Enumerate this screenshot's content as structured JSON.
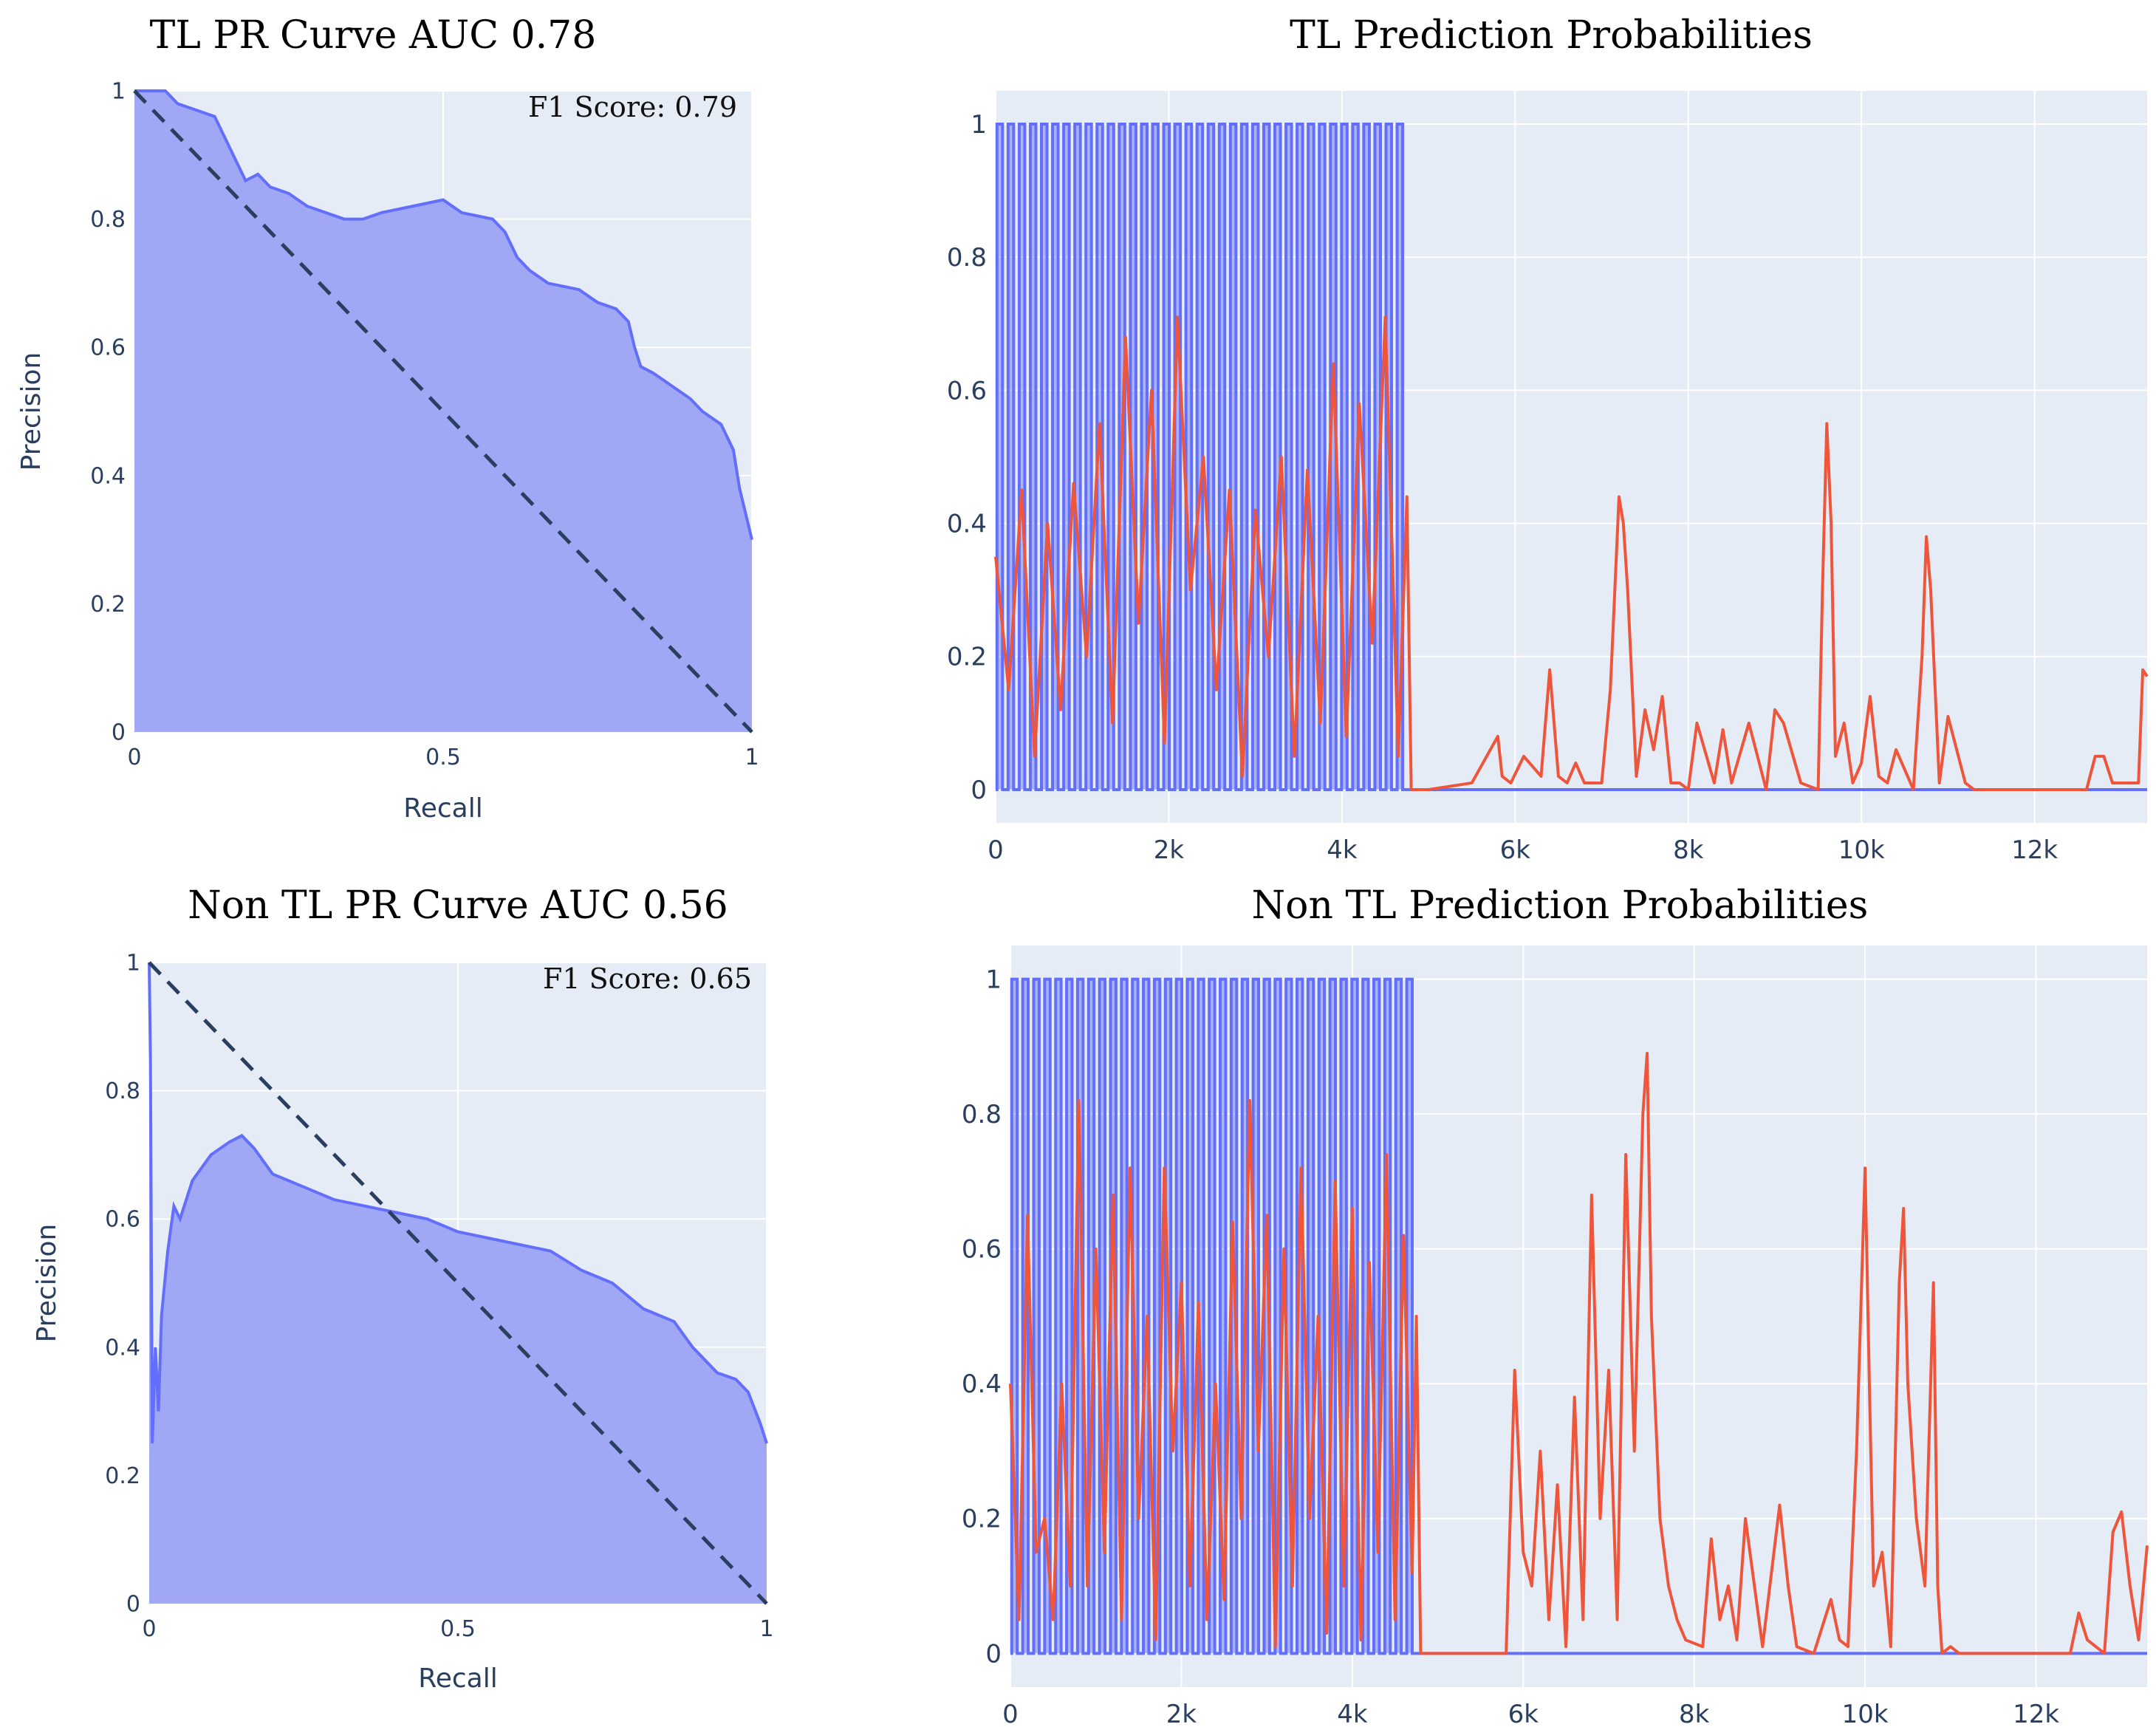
{
  "colors": {
    "plot_bg": "#e5ecf6",
    "grid": "#ffffff",
    "blue_line": "#636efa",
    "blue_fill": "#a0a8f5",
    "red_line": "#ef553b",
    "diag": "#2a3f5f",
    "tick_text": "#2a3f5f"
  },
  "chart_data": [
    {
      "type": "area",
      "id": "tl_pr",
      "title": "TL PR Curve AUC 0.78",
      "xlabel": "Recall",
      "ylabel": "Precision",
      "xlim": [
        0,
        1
      ],
      "ylim": [
        0,
        1
      ],
      "xticks": [
        0,
        0.5,
        1
      ],
      "xticklabels": [
        "0",
        "0.5",
        "1"
      ],
      "yticks": [
        0,
        0.2,
        0.4,
        0.6,
        0.8,
        1
      ],
      "yticklabels": [
        "0",
        "0.2",
        "0.4",
        "0.6",
        "0.8",
        "1"
      ],
      "annotation": "F1 Score: 0.79",
      "diagonal": [
        [
          0,
          1
        ],
        [
          1,
          0
        ]
      ],
      "series": [
        {
          "name": "PR curve",
          "x": [
            0,
            0.05,
            0.07,
            0.13,
            0.15,
            0.17,
            0.18,
            0.2,
            0.22,
            0.25,
            0.28,
            0.31,
            0.34,
            0.37,
            0.4,
            0.45,
            0.5,
            0.53,
            0.58,
            0.6,
            0.62,
            0.64,
            0.67,
            0.72,
            0.75,
            0.78,
            0.8,
            0.81,
            0.82,
            0.84,
            0.87,
            0.9,
            0.92,
            0.95,
            0.97,
            0.98,
            0.99,
            1
          ],
          "y": [
            1,
            1,
            0.98,
            0.96,
            0.92,
            0.88,
            0.86,
            0.87,
            0.85,
            0.84,
            0.82,
            0.81,
            0.8,
            0.8,
            0.81,
            0.82,
            0.83,
            0.81,
            0.8,
            0.78,
            0.74,
            0.72,
            0.7,
            0.69,
            0.67,
            0.66,
            0.64,
            0.6,
            0.57,
            0.56,
            0.54,
            0.52,
            0.5,
            0.48,
            0.44,
            0.38,
            0.34,
            0.3
          ]
        }
      ]
    },
    {
      "type": "line",
      "id": "tl_prob",
      "title": "TL Prediction Probabilities",
      "xlim": [
        0,
        13300
      ],
      "ylim": [
        -0.05,
        1.05
      ],
      "xticks": [
        0,
        2000,
        4000,
        6000,
        8000,
        10000,
        12000
      ],
      "xticklabels": [
        "0",
        "2k",
        "4k",
        "6k",
        "8k",
        "10k",
        "12k"
      ],
      "yticks": [
        0,
        0.2,
        0.4,
        0.6,
        0.8,
        1
      ],
      "yticklabels": [
        "0",
        "0.2",
        "0.4",
        "0.6",
        "0.8",
        "1"
      ],
      "label_end": 4750,
      "label_segments": 37,
      "series": [
        {
          "name": "Prediction probability",
          "x": [
            0,
            150,
            300,
            450,
            600,
            750,
            900,
            1050,
            1200,
            1350,
            1500,
            1650,
            1800,
            1950,
            2100,
            2250,
            2400,
            2550,
            2700,
            2850,
            3000,
            3150,
            3300,
            3450,
            3600,
            3750,
            3900,
            4050,
            4200,
            4350,
            4500,
            4650,
            4750,
            4800,
            5000,
            5500,
            5800,
            5850,
            5950,
            6100,
            6300,
            6400,
            6500,
            6600,
            6700,
            6800,
            7000,
            7100,
            7200,
            7250,
            7300,
            7400,
            7500,
            7600,
            7700,
            7800,
            7900,
            8000,
            8100,
            8300,
            8400,
            8500,
            8700,
            8900,
            9000,
            9100,
            9300,
            9500,
            9550,
            9600,
            9650,
            9700,
            9800,
            9900,
            10000,
            10100,
            10200,
            10300,
            10400,
            10600,
            10700,
            10750,
            10800,
            10900,
            11000,
            11100,
            11200,
            11300,
            11500,
            12000,
            12600,
            12700,
            12800,
            12900,
            13200,
            13250,
            13300
          ],
          "y": [
            0.35,
            0.15,
            0.45,
            0.05,
            0.4,
            0.12,
            0.46,
            0.2,
            0.55,
            0.1,
            0.68,
            0.25,
            0.6,
            0.07,
            0.71,
            0.3,
            0.5,
            0.15,
            0.45,
            0.02,
            0.42,
            0.2,
            0.5,
            0.05,
            0.48,
            0.1,
            0.64,
            0.08,
            0.58,
            0.22,
            0.71,
            0.05,
            0.44,
            0.0,
            0.0,
            0.01,
            0.08,
            0.02,
            0.01,
            0.05,
            0.02,
            0.18,
            0.02,
            0.01,
            0.04,
            0.01,
            0.01,
            0.15,
            0.44,
            0.4,
            0.3,
            0.02,
            0.12,
            0.06,
            0.14,
            0.01,
            0.01,
            0.0,
            0.1,
            0.01,
            0.09,
            0.01,
            0.1,
            0.0,
            0.12,
            0.1,
            0.01,
            0.0,
            0.3,
            0.55,
            0.4,
            0.05,
            0.1,
            0.01,
            0.04,
            0.14,
            0.02,
            0.01,
            0.06,
            0.0,
            0.2,
            0.38,
            0.3,
            0.01,
            0.11,
            0.06,
            0.01,
            0.0,
            0.0,
            0.0,
            0.0,
            0.05,
            0.05,
            0.01,
            0.01,
            0.18,
            0.17
          ]
        }
      ]
    },
    {
      "type": "area",
      "id": "nontl_pr",
      "title": "Non TL PR Curve AUC 0.56",
      "xlabel": "Recall",
      "ylabel": "Precision",
      "xlim": [
        0,
        1
      ],
      "ylim": [
        0,
        1
      ],
      "xticks": [
        0,
        0.5,
        1
      ],
      "xticklabels": [
        "0",
        "0.5",
        "1"
      ],
      "yticks": [
        0,
        0.2,
        0.4,
        0.6,
        0.8,
        1
      ],
      "yticklabels": [
        "0",
        "0.2",
        "0.4",
        "0.6",
        "0.8",
        "1"
      ],
      "annotation": "F1 Score: 0.65",
      "diagonal": [
        [
          0,
          1
        ],
        [
          1,
          0
        ]
      ],
      "series": [
        {
          "name": "PR curve",
          "x": [
            0,
            0.002,
            0.005,
            0.01,
            0.015,
            0.02,
            0.03,
            0.04,
            0.05,
            0.07,
            0.1,
            0.13,
            0.15,
            0.17,
            0.2,
            0.25,
            0.3,
            0.35,
            0.4,
            0.45,
            0.5,
            0.55,
            0.6,
            0.65,
            0.7,
            0.75,
            0.8,
            0.85,
            0.88,
            0.9,
            0.92,
            0.95,
            0.97,
            0.99,
            1
          ],
          "y": [
            1,
            0.85,
            0.25,
            0.4,
            0.3,
            0.45,
            0.55,
            0.62,
            0.6,
            0.66,
            0.7,
            0.72,
            0.73,
            0.71,
            0.67,
            0.65,
            0.63,
            0.62,
            0.61,
            0.6,
            0.58,
            0.57,
            0.56,
            0.55,
            0.52,
            0.5,
            0.46,
            0.44,
            0.4,
            0.38,
            0.36,
            0.35,
            0.33,
            0.28,
            0.25
          ]
        }
      ]
    },
    {
      "type": "line",
      "id": "nontl_prob",
      "title": "Non TL Prediction Probabilities",
      "xlim": [
        0,
        13300
      ],
      "ylim": [
        -0.05,
        1.05
      ],
      "xticks": [
        0,
        2000,
        4000,
        6000,
        8000,
        10000,
        12000
      ],
      "xticklabels": [
        "0",
        "2k",
        "4k",
        "6k",
        "8k",
        "10k",
        "12k"
      ],
      "yticks": [
        0,
        0.2,
        0.4,
        0.6,
        0.8,
        1
      ],
      "yticklabels": [
        "0",
        "0.2",
        "0.4",
        "0.6",
        "0.8",
        "1"
      ],
      "label_end": 4750,
      "label_segments": 37,
      "series": [
        {
          "name": "Prediction probability",
          "x": [
            0,
            100,
            200,
            300,
            400,
            500,
            600,
            700,
            800,
            900,
            1000,
            1100,
            1200,
            1300,
            1400,
            1500,
            1600,
            1700,
            1800,
            1900,
            2000,
            2100,
            2200,
            2300,
            2400,
            2500,
            2600,
            2700,
            2800,
            2900,
            3000,
            3100,
            3200,
            3300,
            3400,
            3500,
            3600,
            3700,
            3800,
            3900,
            4000,
            4100,
            4200,
            4300,
            4400,
            4500,
            4600,
            4700,
            4750,
            4800,
            5000,
            5500,
            5800,
            5900,
            6000,
            6100,
            6200,
            6300,
            6400,
            6500,
            6600,
            6700,
            6800,
            6900,
            7000,
            7100,
            7200,
            7300,
            7350,
            7400,
            7450,
            7500,
            7600,
            7700,
            7800,
            7900,
            8100,
            8200,
            8300,
            8400,
            8500,
            8600,
            8800,
            9000,
            9100,
            9200,
            9400,
            9600,
            9700,
            9800,
            9900,
            10000,
            10050,
            10100,
            10200,
            10300,
            10400,
            10450,
            10500,
            10600,
            10700,
            10800,
            10850,
            10900,
            11000,
            11100,
            11200,
            11500,
            12000,
            12300,
            12400,
            12500,
            12600,
            12700,
            12800,
            12900,
            13000,
            13100,
            13200,
            13300
          ],
          "y": [
            0.4,
            0.05,
            0.65,
            0.15,
            0.2,
            0.05,
            0.4,
            0.1,
            0.82,
            0.1,
            0.6,
            0.15,
            0.68,
            0.05,
            0.72,
            0.2,
            0.5,
            0.02,
            0.72,
            0.3,
            0.55,
            0.1,
            0.52,
            0.05,
            0.4,
            0.08,
            0.64,
            0.2,
            0.82,
            0.3,
            0.65,
            0.01,
            0.6,
            0.1,
            0.72,
            0.2,
            0.5,
            0.03,
            0.7,
            0.1,
            0.66,
            0.02,
            0.58,
            0.15,
            0.74,
            0.05,
            0.62,
            0.12,
            0.5,
            0.0,
            0.0,
            0.0,
            0.0,
            0.42,
            0.15,
            0.1,
            0.3,
            0.05,
            0.25,
            0.01,
            0.38,
            0.05,
            0.68,
            0.2,
            0.42,
            0.05,
            0.74,
            0.3,
            0.55,
            0.8,
            0.89,
            0.5,
            0.2,
            0.1,
            0.05,
            0.02,
            0.01,
            0.17,
            0.05,
            0.1,
            0.02,
            0.2,
            0.01,
            0.22,
            0.1,
            0.01,
            0.0,
            0.08,
            0.02,
            0.01,
            0.3,
            0.72,
            0.4,
            0.1,
            0.15,
            0.01,
            0.55,
            0.66,
            0.4,
            0.2,
            0.1,
            0.55,
            0.1,
            0.0,
            0.01,
            0.0,
            0.0,
            0.0,
            0.0,
            0.0,
            0.0,
            0.06,
            0.02,
            0.01,
            0.0,
            0.18,
            0.21,
            0.1,
            0.02,
            0.16
          ]
        }
      ]
    }
  ]
}
